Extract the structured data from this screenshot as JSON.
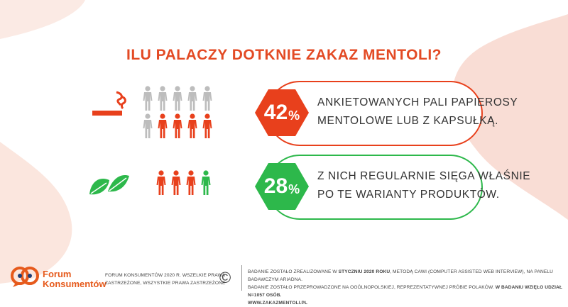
{
  "title": "ILU PALACZY DOTKNIE ZAKAZ MENTOLI?",
  "colors": {
    "red": "#E8401C",
    "green": "#2DB84B",
    "gray": "#BDBDBD",
    "pink": "#F9DDD5",
    "title_red": "#E34A24",
    "logo_blue": "#1F3F77",
    "logo_orange": "#E65A1C"
  },
  "stats": [
    {
      "percent": "42",
      "percent_sign": "%",
      "line1": "ANKIETOWANYCH PALI PAPIEROSY",
      "line2": "MENTOLOWE LUB Z KAPSUŁKĄ.",
      "color": "#E8401C",
      "icon": "cigarette-icon"
    },
    {
      "percent": "28",
      "percent_sign": "%",
      "line1": "Z NICH REGULARNIE SIĘGA WŁAŚNIE",
      "line2": "PO TE WARIANTY PRODUKTÓW.",
      "color": "#2DB84B",
      "icon": "mint-leaves-icon"
    }
  ],
  "footer": {
    "logo_line1": "Forum",
    "logo_line2": "Konsumentów",
    "copyright_line1": "FORUM KONSUMENTÓW 2020 R. WSZELKIE PRAWA",
    "copyright_line2": "ZASTRZEŻONE, WSZYSTKIE PRAWA ZASTRZEŻONE",
    "copyright_symbol": "©",
    "note_line1_a": "BADANIE ZOSTAŁO ZREALIZOWANE W ",
    "note_line1_b": "STYCZNIU 2020 ROKU",
    "note_line1_c": ", METODĄ CAWI (COMPUTER ASSISTED WEB INTERVIEW), NA PANELU BADAWCZYM ARIADNA.",
    "note_line2_a": "BADANIE ZOSTAŁO PRZEPROWADZONE NA OGÓLNOPOLSKIEJ,  REPREZENTATYWNEJ PRÓBIE POLAKÓW. ",
    "note_line2_b": "W BADANIU WZIĘŁO UDZIAŁ N=1057 OSÓB.",
    "note_line3": "WWW.ZAKAZMENTOLI.PL"
  }
}
